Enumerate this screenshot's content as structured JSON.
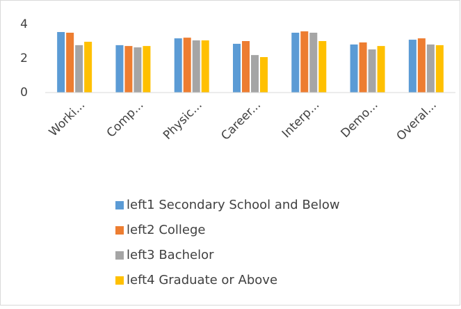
{
  "chart_data": {
    "type": "bar",
    "categories": [
      "Worki...",
      "Comp...",
      "Physic...",
      "Career...",
      "Interp...",
      "Demo...",
      "Overal..."
    ],
    "series": [
      {
        "name": "left1 Secondary School and Below",
        "color": "#5b9bd5",
        "values": [
          3.55,
          2.78,
          3.18,
          2.86,
          3.51,
          2.82,
          3.1
        ]
      },
      {
        "name": "left2 College",
        "color": "#ed7d31",
        "values": [
          3.51,
          2.73,
          3.22,
          3.02,
          3.59,
          2.94,
          3.18
        ]
      },
      {
        "name": "left3 Bachelor",
        "color": "#a5a5a5",
        "values": [
          2.78,
          2.65,
          3.06,
          2.2,
          3.51,
          2.53,
          2.82
        ]
      },
      {
        "name": "left4 Graduate or Above",
        "color": "#ffc000",
        "values": [
          2.98,
          2.73,
          3.06,
          2.08,
          3.02,
          2.73,
          2.78
        ]
      }
    ],
    "ylim": [
      0,
      4
    ],
    "yticks": [
      0,
      2,
      4
    ],
    "grid": false
  }
}
